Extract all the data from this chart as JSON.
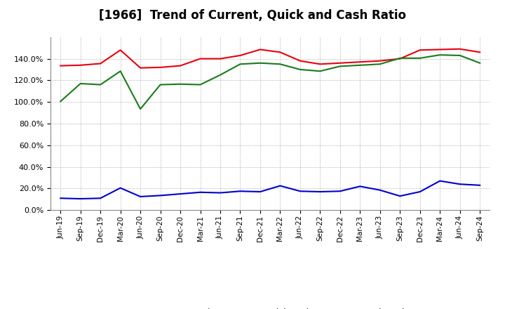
{
  "title": "[1966]  Trend of Current, Quick and Cash Ratio",
  "x_labels": [
    "Jun-19",
    "Sep-19",
    "Dec-19",
    "Mar-20",
    "Jun-20",
    "Sep-20",
    "Dec-20",
    "Mar-21",
    "Jun-21",
    "Sep-21",
    "Dec-21",
    "Mar-22",
    "Jun-22",
    "Sep-22",
    "Dec-22",
    "Mar-23",
    "Jun-23",
    "Sep-23",
    "Dec-23",
    "Mar-24",
    "Jun-24",
    "Sep-24"
  ],
  "current_ratio": [
    133.5,
    134.0,
    135.5,
    148.0,
    131.5,
    132.0,
    133.5,
    140.0,
    140.0,
    143.0,
    148.5,
    146.0,
    138.0,
    135.0,
    136.0,
    137.0,
    138.0,
    140.0,
    148.0,
    148.5,
    149.0,
    146.0
  ],
  "quick_ratio": [
    100.5,
    117.0,
    116.0,
    128.5,
    93.5,
    116.0,
    116.5,
    116.0,
    125.0,
    135.0,
    136.0,
    135.0,
    130.0,
    128.5,
    133.0,
    134.0,
    135.0,
    140.5,
    140.5,
    143.5,
    143.0,
    136.0
  ],
  "cash_ratio": [
    11.0,
    10.5,
    11.0,
    20.5,
    12.5,
    13.5,
    15.0,
    16.5,
    16.0,
    17.5,
    17.0,
    22.5,
    17.5,
    17.0,
    17.5,
    22.0,
    18.5,
    13.0,
    17.0,
    27.0,
    24.0,
    23.0
  ],
  "current_color": "#e8000d",
  "quick_color": "#1a7a1a",
  "cash_color": "#0000cd",
  "ylim": [
    0,
    160
  ],
  "yticks": [
    0,
    20,
    40,
    60,
    80,
    100,
    120,
    140
  ],
  "background_color": "#ffffff",
  "plot_bg_color": "#ffffff",
  "grid_color": "#999999",
  "title_fontsize": 12,
  "legend_labels": [
    "Current Ratio",
    "Quick Ratio",
    "Cash Ratio"
  ]
}
